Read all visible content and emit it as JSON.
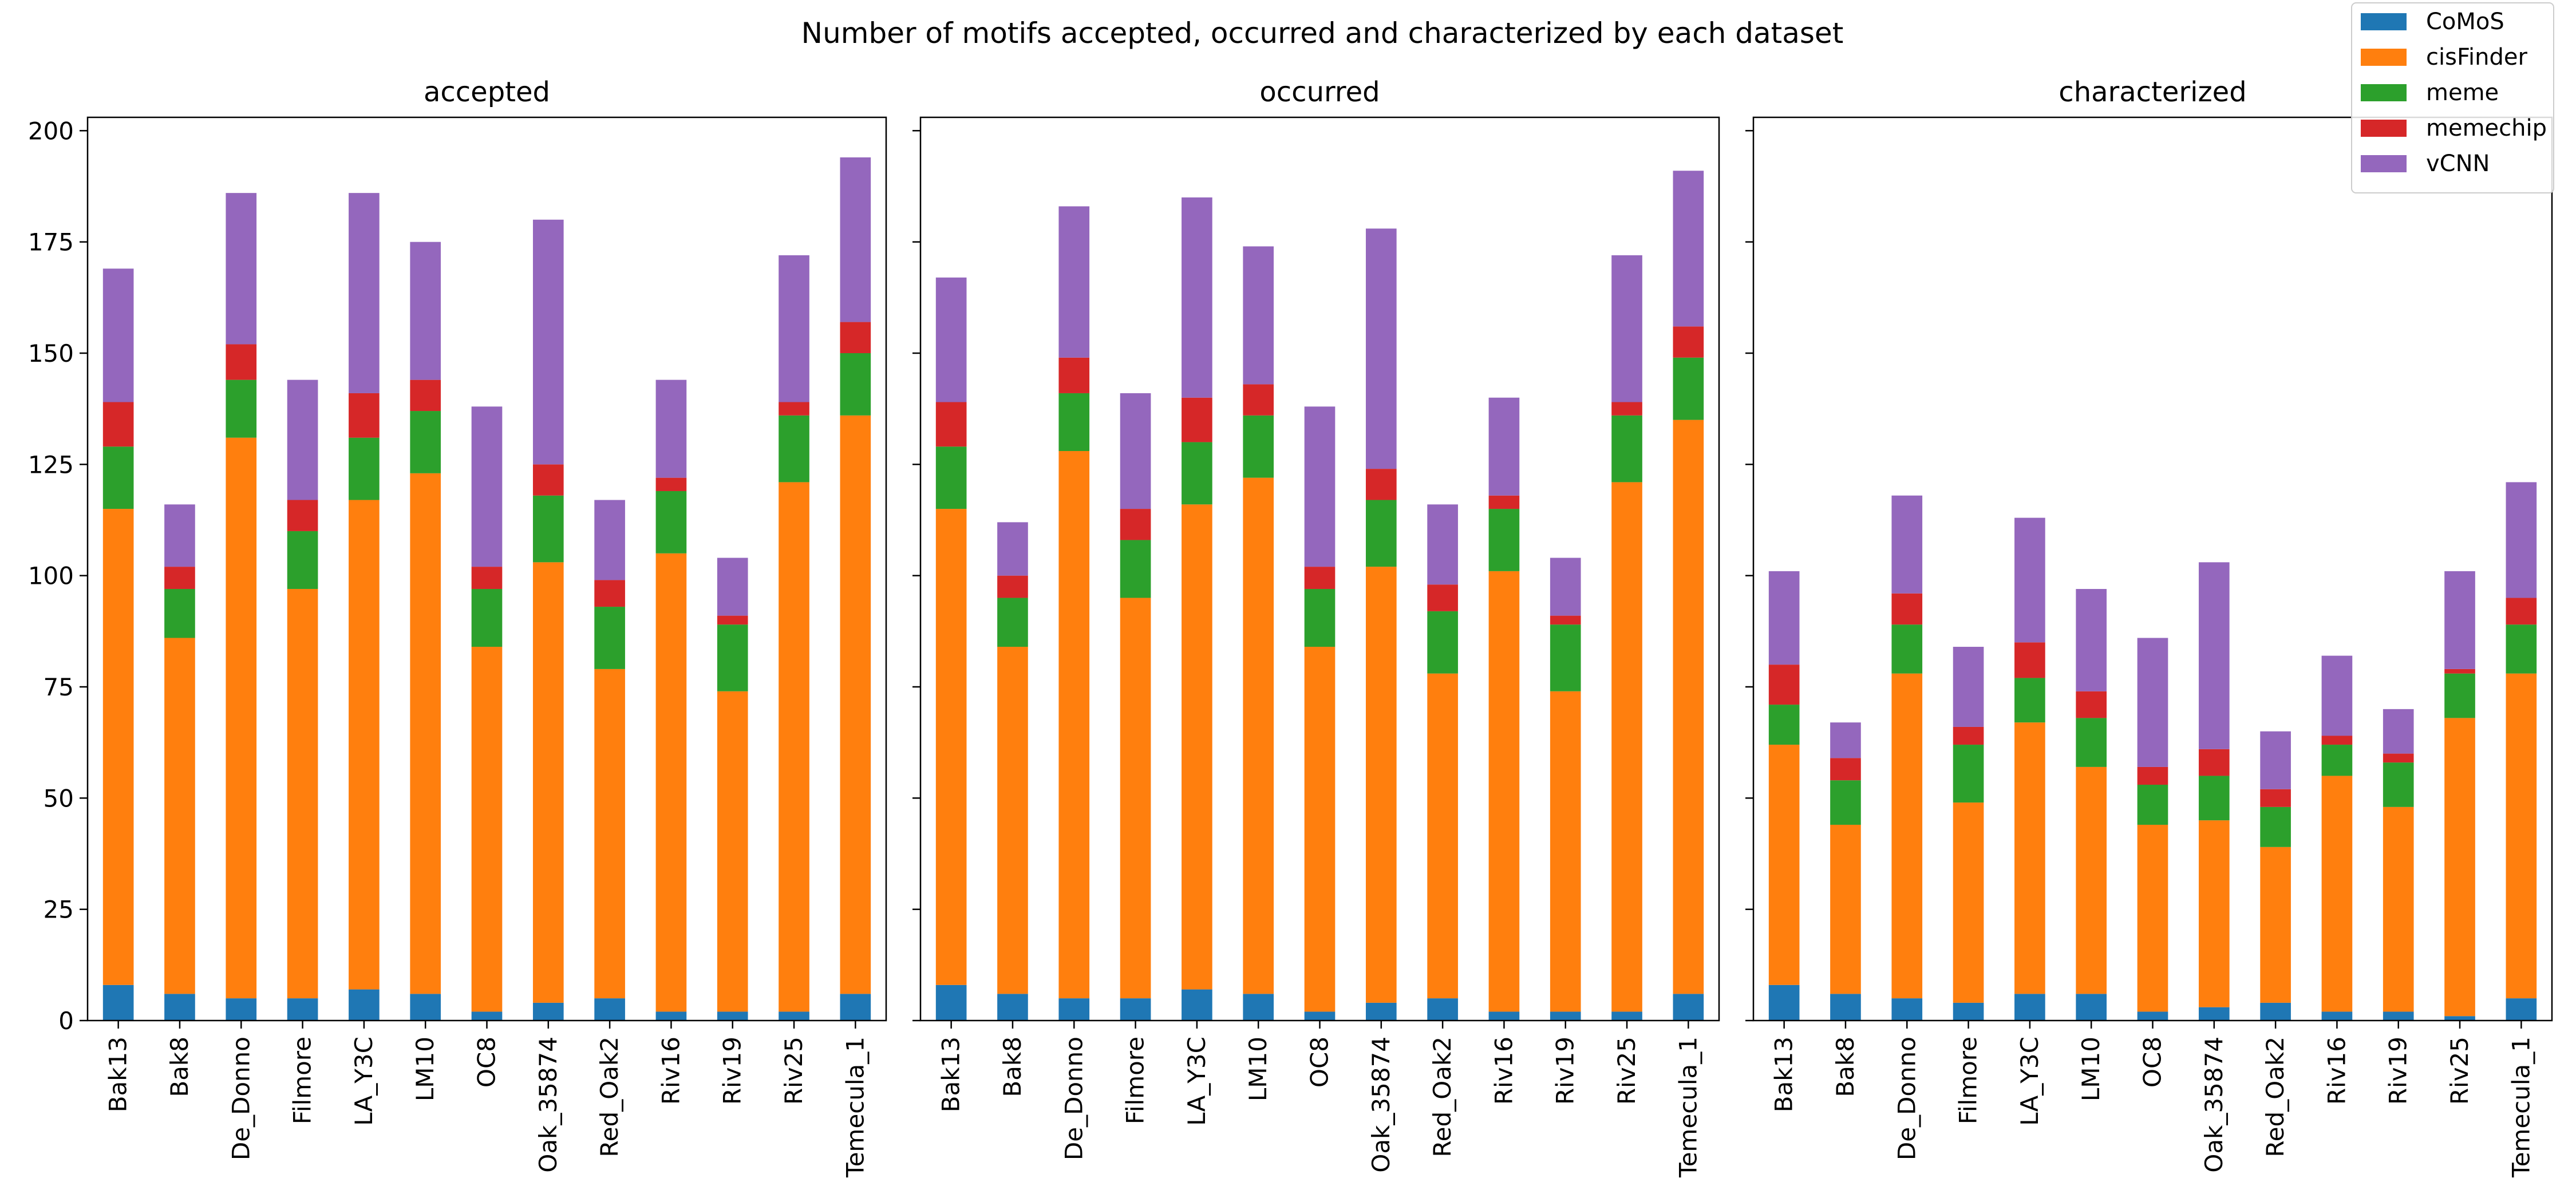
{
  "chart_data": {
    "type": "bar",
    "stacked": true,
    "title": "Number of motifs accepted, occurred and characterized by each dataset",
    "categories": [
      "Bak13",
      "Bak8",
      "De_Donno",
      "Filmore",
      "LA_Y3C",
      "LM10",
      "OC8",
      "Oak_35874",
      "Red_Oak2",
      "Riv16",
      "Riv19",
      "Riv25",
      "Temecula_1"
    ],
    "ylim": [
      0,
      203
    ],
    "yticks": [
      0,
      25,
      50,
      75,
      100,
      125,
      150,
      175,
      200
    ],
    "legend_position": "top-right",
    "series_colors": {
      "CoMoS": "#1f77b4",
      "cisFinder": "#ff7f0e",
      "meme": "#2ca02c",
      "memechip": "#d62728",
      "vCNN": "#9467bd"
    },
    "legend": [
      "CoMoS",
      "cisFinder",
      "meme",
      "memechip",
      "vCNN"
    ],
    "panels": [
      {
        "subtitle": "accepted",
        "series": [
          {
            "name": "CoMoS",
            "values": [
              8,
              6,
              5,
              5,
              7,
              6,
              2,
              4,
              5,
              2,
              2,
              2,
              6
            ]
          },
          {
            "name": "cisFinder",
            "values": [
              107,
              80,
              126,
              92,
              110,
              117,
              82,
              99,
              74,
              103,
              72,
              119,
              130
            ]
          },
          {
            "name": "meme",
            "values": [
              14,
              11,
              13,
              13,
              14,
              14,
              13,
              15,
              14,
              14,
              15,
              15,
              14
            ]
          },
          {
            "name": "memechip",
            "values": [
              10,
              5,
              8,
              7,
              10,
              7,
              5,
              7,
              6,
              3,
              2,
              3,
              7
            ]
          },
          {
            "name": "vCNN",
            "values": [
              30,
              14,
              34,
              27,
              45,
              31,
              36,
              55,
              18,
              22,
              13,
              33,
              37
            ]
          }
        ]
      },
      {
        "subtitle": "occurred",
        "series": [
          {
            "name": "CoMoS",
            "values": [
              8,
              6,
              5,
              5,
              7,
              6,
              2,
              4,
              5,
              2,
              2,
              2,
              6
            ]
          },
          {
            "name": "cisFinder",
            "values": [
              107,
              78,
              123,
              90,
              109,
              116,
              82,
              98,
              73,
              99,
              72,
              119,
              129
            ]
          },
          {
            "name": "meme",
            "values": [
              14,
              11,
              13,
              13,
              14,
              14,
              13,
              15,
              14,
              14,
              15,
              15,
              14
            ]
          },
          {
            "name": "memechip",
            "values": [
              10,
              5,
              8,
              7,
              10,
              7,
              5,
              7,
              6,
              3,
              2,
              3,
              7
            ]
          },
          {
            "name": "vCNN",
            "values": [
              28,
              12,
              34,
              26,
              45,
              31,
              36,
              54,
              18,
              22,
              13,
              33,
              35
            ]
          }
        ]
      },
      {
        "subtitle": "characterized",
        "series": [
          {
            "name": "CoMoS",
            "values": [
              8,
              6,
              5,
              4,
              6,
              6,
              2,
              3,
              4,
              2,
              2,
              1,
              5
            ]
          },
          {
            "name": "cisFinder",
            "values": [
              54,
              38,
              73,
              45,
              61,
              51,
              42,
              42,
              35,
              53,
              46,
              67,
              73
            ]
          },
          {
            "name": "meme",
            "values": [
              9,
              10,
              11,
              13,
              10,
              11,
              9,
              10,
              9,
              7,
              10,
              10,
              11
            ]
          },
          {
            "name": "memechip",
            "values": [
              9,
              5,
              7,
              4,
              8,
              6,
              4,
              6,
              4,
              2,
              2,
              1,
              6
            ]
          },
          {
            "name": "vCNN",
            "values": [
              21,
              8,
              22,
              18,
              28,
              23,
              29,
              42,
              13,
              18,
              10,
              22,
              26
            ]
          }
        ]
      }
    ]
  }
}
